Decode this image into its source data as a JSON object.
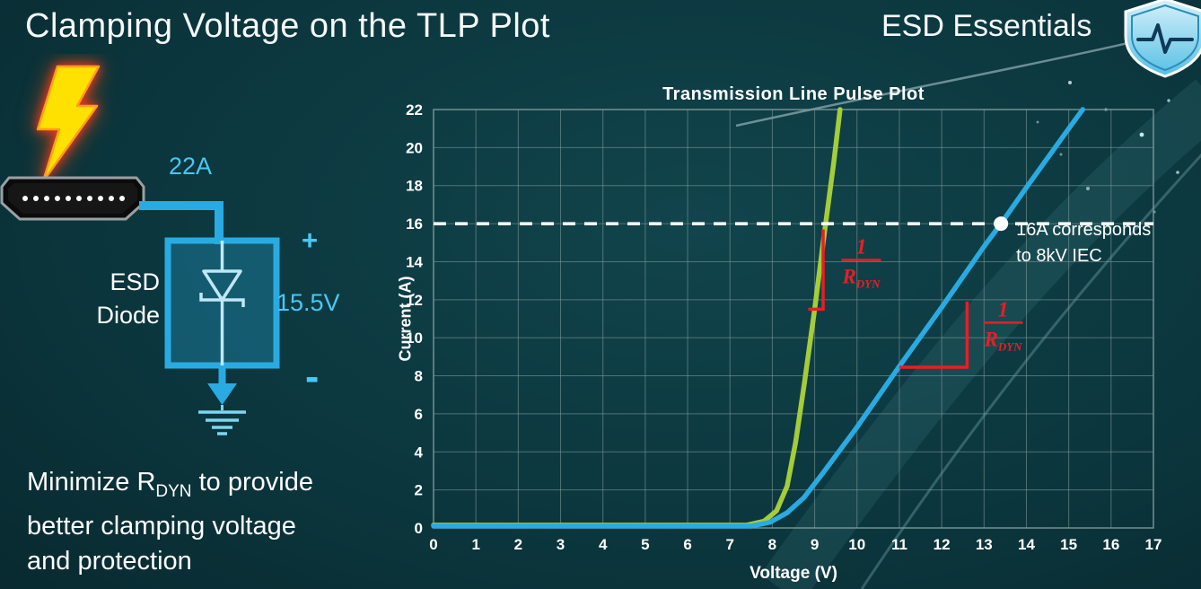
{
  "slide": {
    "title": "Clamping Voltage on the TLP Plot",
    "brand": "ESD Essentials"
  },
  "diagram": {
    "current_label": "22A",
    "device_label_line1": "ESD",
    "device_label_line2": "Diode",
    "plus_label": "+",
    "voltage_label": "15.5V",
    "minus_label": "-"
  },
  "note": {
    "line1_pre": "Minimize R",
    "line1_sub": "DYN",
    "line1_post": " to provide",
    "line2": "better clamping voltage",
    "line3": "and protection"
  },
  "chart_data": {
    "type": "line",
    "title": "Transmission Line Pulse Plot",
    "xlabel": "Voltage (V)",
    "ylabel": "Current (A)",
    "xlim": [
      0,
      17
    ],
    "ylim": [
      0,
      22
    ],
    "xticks": [
      0,
      1,
      2,
      3,
      4,
      5,
      6,
      7,
      8,
      9,
      10,
      11,
      12,
      13,
      14,
      15,
      16,
      17
    ],
    "yticks": [
      0,
      2,
      4,
      6,
      8,
      10,
      12,
      14,
      16,
      18,
      20,
      22
    ],
    "grid": true,
    "legend": "none",
    "series": [
      {
        "id": "green-curve",
        "color": "#a4cd39",
        "points": [
          [
            0,
            0.15
          ],
          [
            3,
            0.15
          ],
          [
            6,
            0.15
          ],
          [
            7.4,
            0.15
          ],
          [
            7.8,
            0.35
          ],
          [
            8.1,
            0.9
          ],
          [
            8.35,
            2.2
          ],
          [
            8.55,
            4.5
          ],
          [
            8.75,
            7.5
          ],
          [
            9.0,
            11.5
          ],
          [
            9.2,
            15.0
          ],
          [
            9.45,
            19.2
          ],
          [
            9.6,
            22
          ]
        ]
      },
      {
        "id": "blue-curve",
        "color": "#29abe2",
        "points": [
          [
            0,
            0.1
          ],
          [
            3,
            0.1
          ],
          [
            6,
            0.1
          ],
          [
            7.5,
            0.1
          ],
          [
            7.95,
            0.3
          ],
          [
            8.35,
            0.8
          ],
          [
            8.75,
            1.6
          ],
          [
            9.2,
            2.9
          ],
          [
            10,
            5.3
          ],
          [
            11,
            8.5
          ],
          [
            12,
            11.6
          ],
          [
            13,
            14.8
          ],
          [
            13.4,
            16
          ],
          [
            14,
            17.9
          ],
          [
            15,
            21
          ],
          [
            15.33,
            22
          ]
        ]
      }
    ],
    "threshold_line": {
      "y": 16,
      "color": "#ffffff",
      "style": "dashed"
    },
    "threshold_point": {
      "x": 13.4,
      "y": 16,
      "color": "#ffffff",
      "label_lines": [
        "16A corresponds",
        "to 8kV IEC"
      ]
    },
    "slope_markers": [
      {
        "color": "#ed1c24",
        "polyline": [
          [
            9.2,
            15.7
          ],
          [
            9.2,
            11.5
          ],
          [
            8.85,
            11.5
          ]
        ],
        "label": {
          "x": 10.1,
          "y": 14.0,
          "numerator": "1",
          "denominator": "R",
          "denominator_sub": "DYN"
        }
      },
      {
        "color": "#ed1c24",
        "polyline": [
          [
            11.0,
            8.45
          ],
          [
            12.6,
            8.45
          ],
          [
            12.6,
            11.9
          ]
        ],
        "label": {
          "x": 13.45,
          "y": 10.7,
          "numerator": "1",
          "denominator": "R",
          "denominator_sub": "DYN"
        }
      }
    ]
  }
}
